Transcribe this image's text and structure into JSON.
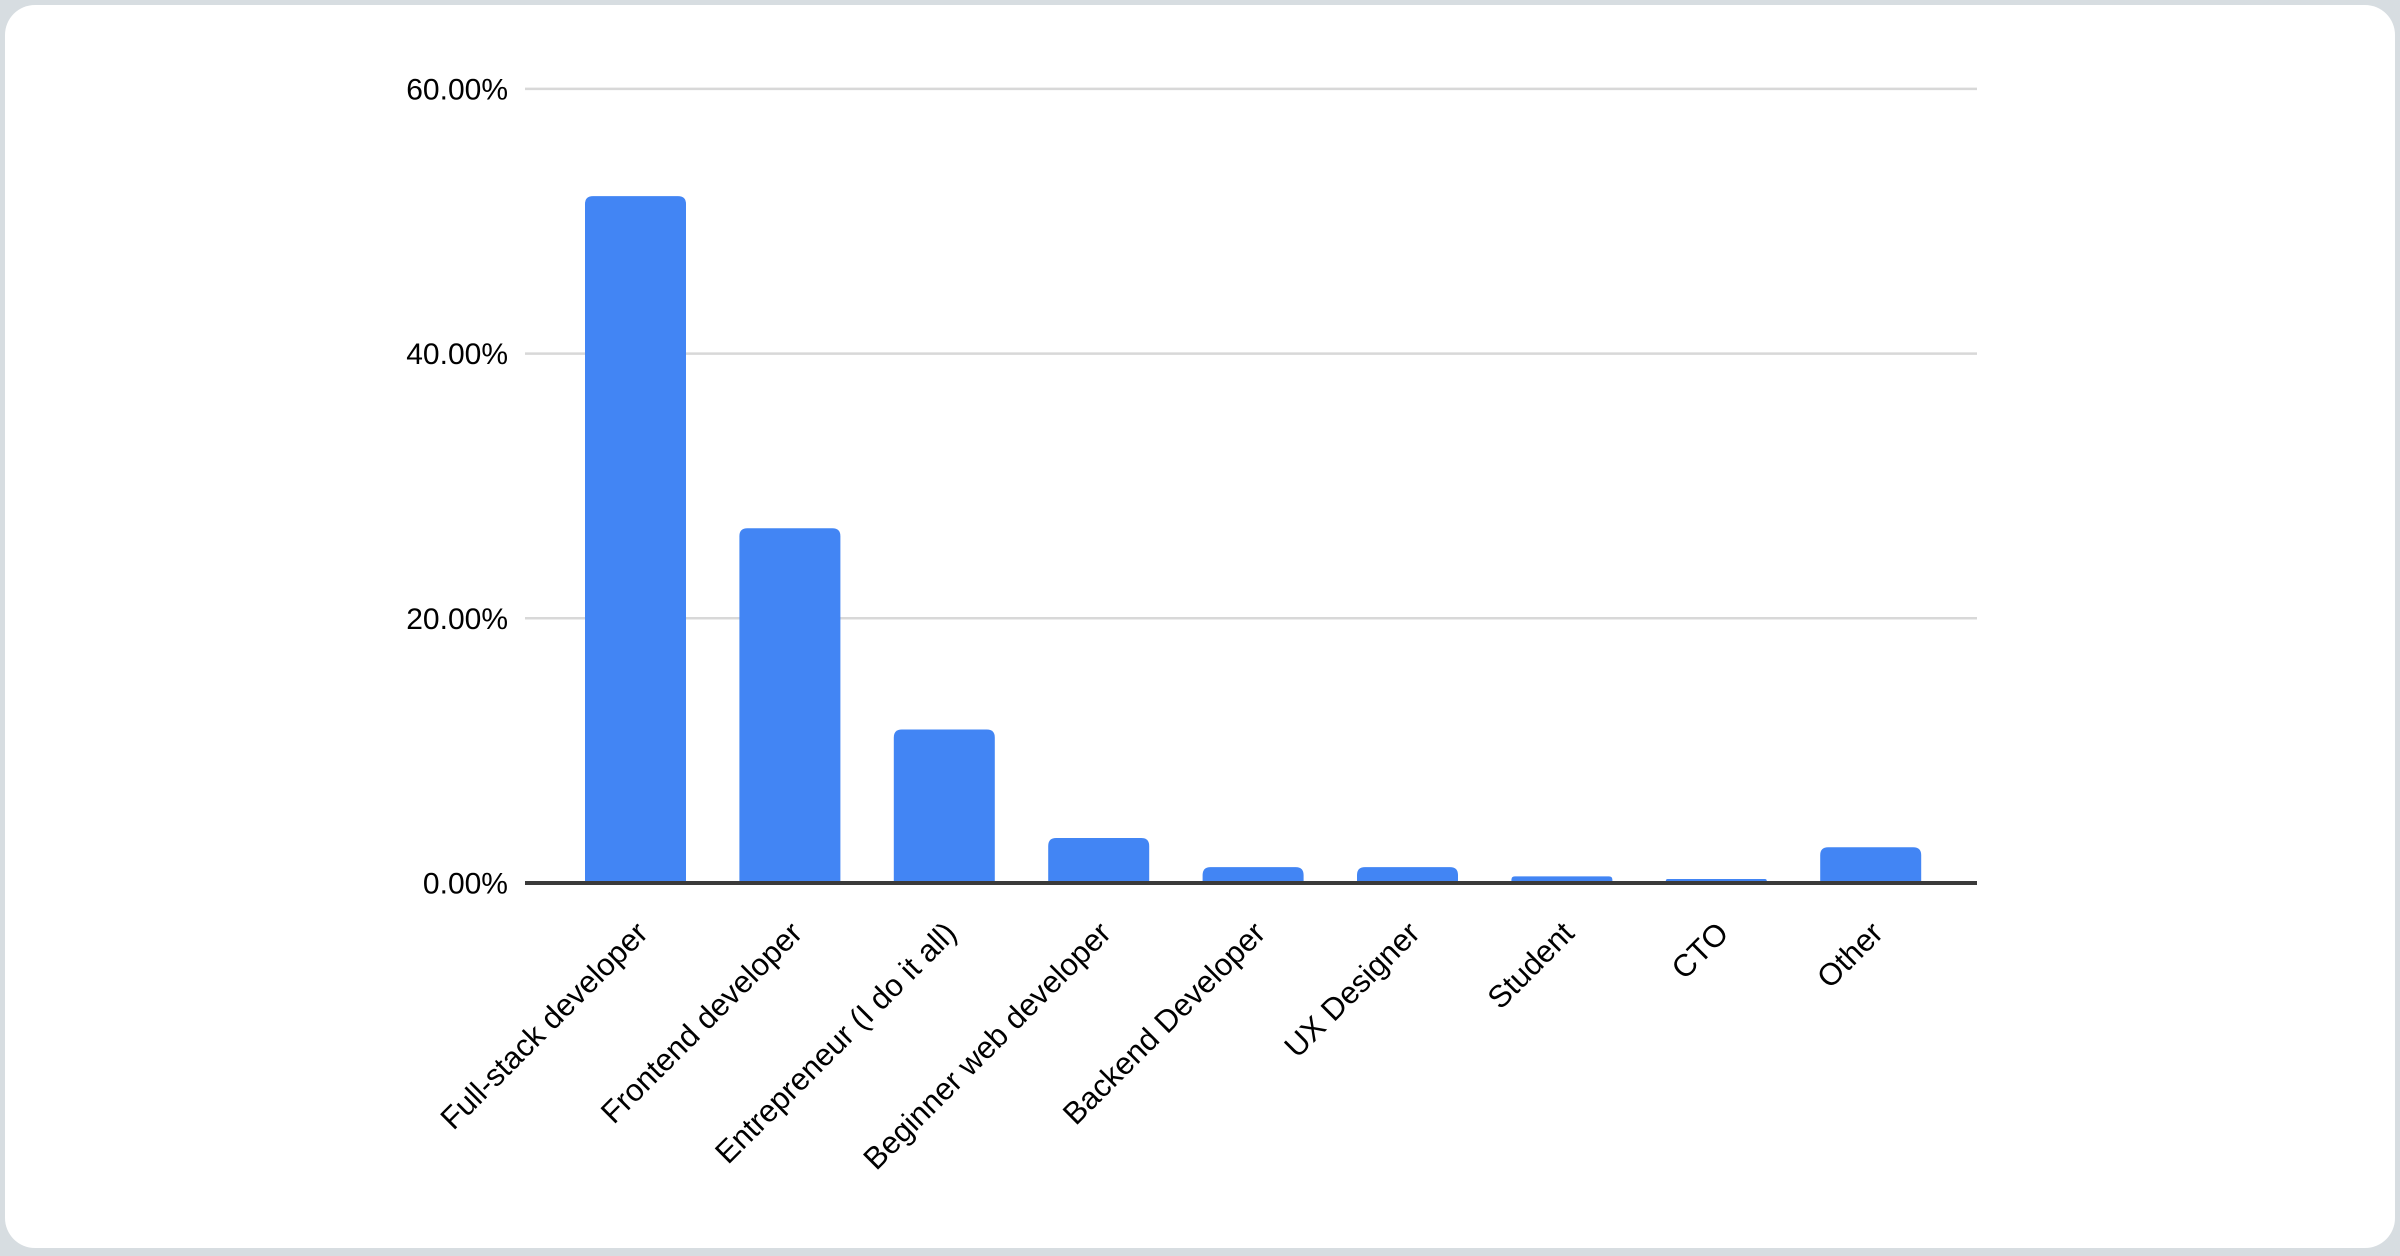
{
  "page": {
    "background_color": "#d7dde1",
    "card_background_color": "#ffffff"
  },
  "chart_data": {
    "type": "bar",
    "title": "",
    "xlabel": "",
    "ylabel": "",
    "categories": [
      "Full-stack developer",
      "Frontend developer",
      "Entrepreneur (I do it all)",
      "Beginner web developer",
      "Backend Developer",
      "UX Designer",
      "Student",
      "CTO",
      "Other"
    ],
    "values": [
      51.9,
      26.8,
      11.6,
      3.4,
      1.2,
      1.2,
      0.5,
      0.3,
      2.7
    ],
    "unit": "%",
    "ylim": [
      0,
      60
    ],
    "y_ticks": [
      {
        "label": "0.00%",
        "value": 0
      },
      {
        "label": "20.00%",
        "value": 20
      },
      {
        "label": "40.00%",
        "value": 40
      },
      {
        "label": "60.00%",
        "value": 60
      }
    ],
    "grid": true,
    "legend_position": "none",
    "bar_color": "#4285f4",
    "gridline_color": "#d8d8d8",
    "axis_line_color": "#3a3a3a",
    "tick_label_color": "#000000",
    "x_label_rotation_deg": 45
  }
}
